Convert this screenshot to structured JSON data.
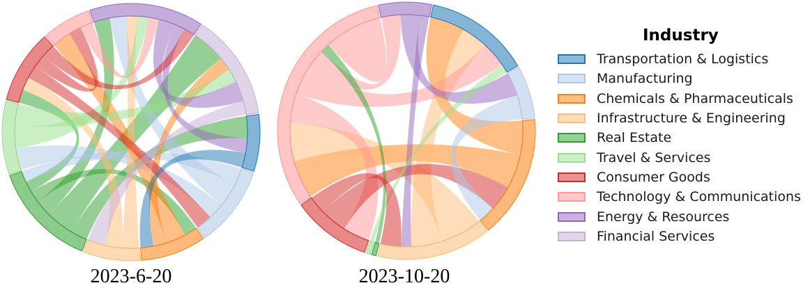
{
  "chart_data": [
    {
      "type": "chord",
      "title": "2023-6-20",
      "categories": [
        "Transportation & Logistics",
        "Manufacturing",
        "Chemicals & Pharmaceuticals",
        "Infrastructure & Engineering",
        "Real Estate",
        "Travel & Services",
        "Consumer Goods",
        "Technology & Communications",
        "Energy & Resources",
        "Financial Services"
      ],
      "group_share": [
        0.07,
        0.1,
        0.08,
        0.07,
        0.13,
        0.09,
        0.09,
        0.06,
        0.14,
        0.13
      ],
      "links": [
        [
          "Real Estate",
          "Transportation & Logistics",
          3
        ],
        [
          "Real Estate",
          "Financial Services",
          5
        ],
        [
          "Real Estate",
          "Energy & Resources",
          3
        ],
        [
          "Real Estate",
          "Chemicals & Pharmaceuticals",
          2
        ],
        [
          "Real Estate",
          "Consumer Goods",
          2
        ],
        [
          "Manufacturing",
          "Real Estate",
          2
        ],
        [
          "Manufacturing",
          "Energy & Resources",
          3
        ],
        [
          "Manufacturing",
          "Travel & Services",
          2
        ],
        [
          "Chemicals & Pharmaceuticals",
          "Technology & Communications",
          3
        ],
        [
          "Chemicals & Pharmaceuticals",
          "Financial Services",
          2
        ],
        [
          "Infrastructure & Engineering",
          "Energy & Resources",
          2
        ],
        [
          "Infrastructure & Engineering",
          "Consumer Goods",
          2
        ],
        [
          "Travel & Services",
          "Energy & Resources",
          2
        ],
        [
          "Travel & Services",
          "Financial Services",
          2
        ],
        [
          "Consumer Goods",
          "Manufacturing",
          2
        ],
        [
          "Consumer Goods",
          "Technology & Communications",
          2
        ],
        [
          "Technology & Communications",
          "Energy & Resources",
          2
        ],
        [
          "Energy & Resources",
          "Financial Services",
          3
        ],
        [
          "Energy & Resources",
          "Transportation & Logistics",
          2
        ],
        [
          "Financial Services",
          "Infrastructure & Engineering",
          2
        ],
        [
          "Transportation & Logistics",
          "Chemicals & Pharmaceuticals",
          2
        ],
        [
          "Consumer Goods",
          "Energy & Resources",
          2
        ]
      ]
    },
    {
      "type": "chord",
      "title": "2023-10-20",
      "categories": [
        "Transportation & Logistics",
        "Manufacturing",
        "Chemicals & Pharmaceuticals",
        "Infrastructure & Engineering",
        "Real Estate",
        "Travel & Services",
        "Consumer Goods",
        "Technology & Communications",
        "Energy & Resources",
        "Financial Services"
      ],
      "group_share": [
        0.12,
        0.06,
        0.14,
        0.13,
        0.005,
        0.005,
        0.09,
        0.28,
        0.06,
        0.0
      ],
      "links": [
        [
          "Chemicals & Pharmaceuticals",
          "Transportation & Logistics",
          4
        ],
        [
          "Chemicals & Pharmaceuticals",
          "Technology & Communications",
          4
        ],
        [
          "Infrastructure & Engineering",
          "Technology & Communications",
          4
        ],
        [
          "Infrastructure & Engineering",
          "Transportation & Logistics",
          3
        ],
        [
          "Technology & Communications",
          "Consumer Goods",
          3
        ],
        [
          "Technology & Communications",
          "Transportation & Logistics",
          3
        ],
        [
          "Technology & Communications",
          "Energy & Resources",
          2
        ],
        [
          "Consumer Goods",
          "Chemicals & Pharmaceuticals",
          3
        ],
        [
          "Energy & Resources",
          "Manufacturing",
          2
        ],
        [
          "Energy & Resources",
          "Infrastructure & Engineering",
          1
        ],
        [
          "Manufacturing",
          "Chemicals & Pharmaceuticals",
          2
        ],
        [
          "Real Estate",
          "Technology & Communications",
          1
        ],
        [
          "Travel & Services",
          "Transportation & Logistics",
          1
        ],
        [
          "Technology & Communications",
          "Technology & Communications",
          3
        ],
        [
          "Consumer Goods",
          "Infrastructure & Engineering",
          2
        ]
      ]
    }
  ],
  "captions": [
    "2023-6-20",
    "2023-10-20"
  ],
  "legend": {
    "title": "Industry",
    "items": [
      {
        "label": "Transportation & Logistics",
        "color": "#1f77b4"
      },
      {
        "label": "Manufacturing",
        "color": "#aec7e8"
      },
      {
        "label": "Chemicals & Pharmaceuticals",
        "color": "#ff7f0e"
      },
      {
        "label": "Infrastructure & Engineering",
        "color": "#ffbb78"
      },
      {
        "label": "Real Estate",
        "color": "#2ca02c"
      },
      {
        "label": "Travel & Services",
        "color": "#98df8a"
      },
      {
        "label": "Consumer Goods",
        "color": "#d62728"
      },
      {
        "label": "Technology & Communications",
        "color": "#ff9896"
      },
      {
        "label": "Energy & Resources",
        "color": "#9467bd"
      },
      {
        "label": "Financial Services",
        "color": "#c5b0d5"
      }
    ]
  }
}
